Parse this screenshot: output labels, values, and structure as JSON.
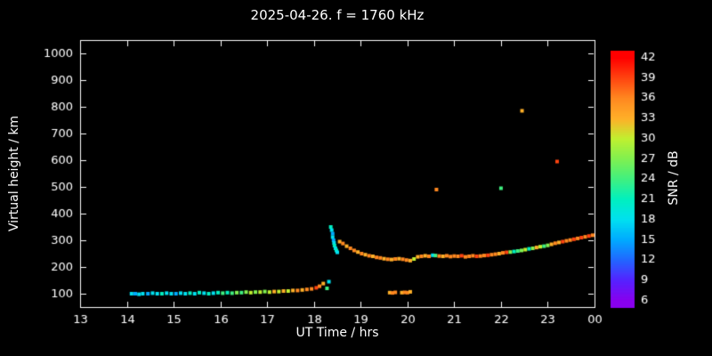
{
  "title": "2025-04-26. f = 1760 kHz",
  "chart_data": {
    "type": "scatter",
    "title": "2025-04-26. f = 1760 kHz",
    "xlabel": "UT Time / hrs",
    "ylabel": "Virtual height / km",
    "colorbar_label": "SNR / dB",
    "background": "#000000",
    "fg": "#ffffff",
    "xlim": [
      13,
      24
    ],
    "ylim": [
      50,
      1050
    ],
    "grid": false,
    "x_ticks": [
      {
        "v": 13,
        "label": "13"
      },
      {
        "v": 14,
        "label": "14"
      },
      {
        "v": 15,
        "label": "15"
      },
      {
        "v": 16,
        "label": "16"
      },
      {
        "v": 17,
        "label": "17"
      },
      {
        "v": 18,
        "label": "18"
      },
      {
        "v": 19,
        "label": "19"
      },
      {
        "v": 20,
        "label": "20"
      },
      {
        "v": 21,
        "label": "21"
      },
      {
        "v": 22,
        "label": "22"
      },
      {
        "v": 23,
        "label": "23"
      },
      {
        "v": 24,
        "label": "00"
      }
    ],
    "y_ticks": [
      {
        "v": 100,
        "label": "100"
      },
      {
        "v": 200,
        "label": "200"
      },
      {
        "v": 300,
        "label": "300"
      },
      {
        "v": 400,
        "label": "400"
      },
      {
        "v": 500,
        "label": "500"
      },
      {
        "v": 600,
        "label": "600"
      },
      {
        "v": 700,
        "label": "700"
      },
      {
        "v": 800,
        "label": "800"
      },
      {
        "v": 900,
        "label": "900"
      },
      {
        "v": 1000,
        "label": "1000"
      }
    ],
    "snr_ticks": [
      42,
      39,
      36,
      33,
      30,
      27,
      24,
      21,
      18,
      15,
      12,
      9,
      6
    ],
    "colorbar_range": [
      5,
      43
    ],
    "colormap": [
      {
        "v": 6,
        "c": "#8800ee"
      },
      {
        "v": 9,
        "c": "#5522ff"
      },
      {
        "v": 12,
        "c": "#2266ff"
      },
      {
        "v": 15,
        "c": "#00aaff"
      },
      {
        "v": 18,
        "c": "#00e0f0"
      },
      {
        "v": 21,
        "c": "#00f0c0"
      },
      {
        "v": 24,
        "c": "#40f080"
      },
      {
        "v": 27,
        "c": "#80f050"
      },
      {
        "v": 30,
        "c": "#c0f030"
      },
      {
        "v": 33,
        "c": "#ffb028"
      },
      {
        "v": 36,
        "c": "#ff8820"
      },
      {
        "v": 39,
        "c": "#ff4410"
      },
      {
        "v": 42,
        "c": "#ff0000"
      }
    ],
    "points": [
      [
        14.1,
        100,
        18
      ],
      [
        14.18,
        100,
        15
      ],
      [
        14.26,
        98,
        18
      ],
      [
        14.34,
        100,
        18
      ],
      [
        14.45,
        100,
        15
      ],
      [
        14.55,
        102,
        18
      ],
      [
        14.65,
        100,
        18
      ],
      [
        14.75,
        100,
        21
      ],
      [
        14.85,
        102,
        18
      ],
      [
        14.95,
        100,
        18
      ],
      [
        15.05,
        100,
        15
      ],
      [
        15.15,
        102,
        18
      ],
      [
        15.25,
        100,
        18
      ],
      [
        15.35,
        102,
        21
      ],
      [
        15.45,
        100,
        18
      ],
      [
        15.55,
        104,
        21
      ],
      [
        15.65,
        102,
        18
      ],
      [
        15.75,
        100,
        21
      ],
      [
        15.85,
        102,
        18
      ],
      [
        15.95,
        104,
        21
      ],
      [
        16.05,
        102,
        24
      ],
      [
        16.15,
        104,
        21
      ],
      [
        16.25,
        102,
        24
      ],
      [
        16.35,
        104,
        27
      ],
      [
        16.45,
        104,
        24
      ],
      [
        16.55,
        106,
        27
      ],
      [
        16.65,
        104,
        30
      ],
      [
        16.75,
        106,
        27
      ],
      [
        16.85,
        106,
        30
      ],
      [
        16.95,
        108,
        27
      ],
      [
        17.05,
        106,
        30
      ],
      [
        17.15,
        108,
        33
      ],
      [
        17.25,
        108,
        30
      ],
      [
        17.35,
        110,
        33
      ],
      [
        17.45,
        110,
        30
      ],
      [
        17.55,
        112,
        33
      ],
      [
        17.65,
        112,
        36
      ],
      [
        17.75,
        114,
        33
      ],
      [
        17.85,
        116,
        36
      ],
      [
        17.95,
        118,
        36
      ],
      [
        18.05,
        122,
        39
      ],
      [
        18.12,
        128,
        36
      ],
      [
        18.2,
        138,
        33
      ],
      [
        18.28,
        120,
        24
      ],
      [
        18.32,
        145,
        18
      ],
      [
        18.36,
        350,
        21
      ],
      [
        18.38,
        338,
        18
      ],
      [
        18.4,
        325,
        15
      ],
      [
        18.4,
        312,
        18
      ],
      [
        18.42,
        300,
        15
      ],
      [
        18.43,
        290,
        18
      ],
      [
        18.44,
        280,
        21
      ],
      [
        18.46,
        270,
        18
      ],
      [
        18.48,
        262,
        21
      ],
      [
        18.5,
        255,
        18
      ],
      [
        18.55,
        295,
        33
      ],
      [
        18.62,
        288,
        36
      ],
      [
        18.7,
        278,
        33
      ],
      [
        18.78,
        270,
        36
      ],
      [
        18.86,
        262,
        36
      ],
      [
        18.94,
        256,
        33
      ],
      [
        19.02,
        250,
        36
      ],
      [
        19.1,
        246,
        33
      ],
      [
        19.18,
        242,
        36
      ],
      [
        19.26,
        240,
        33
      ],
      [
        19.34,
        236,
        36
      ],
      [
        19.42,
        234,
        36
      ],
      [
        19.5,
        231,
        33
      ],
      [
        19.58,
        229,
        36
      ],
      [
        19.66,
        228,
        33
      ],
      [
        19.74,
        230,
        36
      ],
      [
        19.82,
        231,
        33
      ],
      [
        19.9,
        229,
        36
      ],
      [
        19.62,
        104,
        33
      ],
      [
        19.68,
        103,
        36
      ],
      [
        19.74,
        105,
        36
      ],
      [
        19.88,
        104,
        33
      ],
      [
        19.94,
        105,
        36
      ],
      [
        20.0,
        104,
        36
      ],
      [
        20.06,
        107,
        33
      ],
      [
        19.98,
        226,
        36
      ],
      [
        20.06,
        224,
        33
      ],
      [
        20.14,
        230,
        30
      ],
      [
        20.22,
        238,
        33
      ],
      [
        20.3,
        240,
        36
      ],
      [
        20.38,
        242,
        33
      ],
      [
        20.46,
        240,
        36
      ],
      [
        20.54,
        244,
        18
      ],
      [
        20.6,
        243,
        24
      ],
      [
        20.62,
        490,
        36
      ],
      [
        20.68,
        241,
        36
      ],
      [
        20.76,
        240,
        33
      ],
      [
        20.84,
        242,
        36
      ],
      [
        20.92,
        239,
        36
      ],
      [
        21.0,
        241,
        36
      ],
      [
        21.08,
        240,
        36
      ],
      [
        21.16,
        242,
        39
      ],
      [
        21.24,
        238,
        36
      ],
      [
        21.32,
        240,
        36
      ],
      [
        21.4,
        242,
        36
      ],
      [
        21.48,
        240,
        39
      ],
      [
        21.56,
        241,
        36
      ],
      [
        21.64,
        243,
        36
      ],
      [
        21.72,
        244,
        39
      ],
      [
        21.8,
        246,
        36
      ],
      [
        21.88,
        248,
        36
      ],
      [
        21.96,
        250,
        33
      ],
      [
        22.0,
        495,
        24
      ],
      [
        22.04,
        253,
        36
      ],
      [
        22.12,
        255,
        39
      ],
      [
        22.2,
        256,
        27
      ],
      [
        22.28,
        258,
        21
      ],
      [
        22.36,
        260,
        24
      ],
      [
        22.45,
        785,
        33
      ],
      [
        22.44,
        262,
        27
      ],
      [
        22.52,
        265,
        30
      ],
      [
        22.6,
        268,
        21
      ],
      [
        22.68,
        270,
        27
      ],
      [
        22.76,
        273,
        33
      ],
      [
        22.84,
        276,
        30
      ],
      [
        22.92,
        278,
        24
      ],
      [
        23.0,
        281,
        27
      ],
      [
        23.08,
        285,
        33
      ],
      [
        23.2,
        595,
        39
      ],
      [
        23.16,
        289,
        36
      ],
      [
        23.24,
        292,
        33
      ],
      [
        23.32,
        295,
        39
      ],
      [
        23.4,
        298,
        36
      ],
      [
        23.48,
        301,
        36
      ],
      [
        23.56,
        304,
        39
      ],
      [
        23.64,
        307,
        36
      ],
      [
        23.72,
        310,
        39
      ],
      [
        23.8,
        313,
        36
      ],
      [
        23.88,
        316,
        39
      ],
      [
        23.96,
        319,
        36
      ]
    ]
  }
}
